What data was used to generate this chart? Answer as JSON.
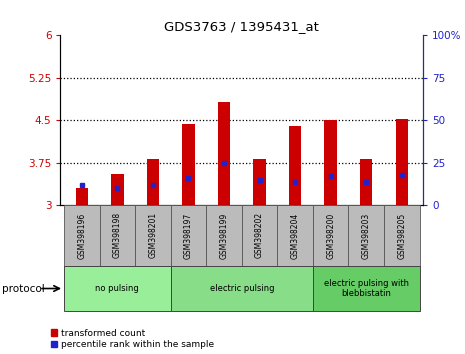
{
  "title": "GDS3763 / 1395431_at",
  "samples": [
    "GSM398196",
    "GSM398198",
    "GSM398201",
    "GSM398197",
    "GSM398199",
    "GSM398202",
    "GSM398204",
    "GSM398200",
    "GSM398203",
    "GSM398205"
  ],
  "red_values": [
    3.3,
    3.55,
    3.82,
    4.43,
    4.82,
    3.82,
    4.4,
    4.5,
    3.82,
    4.52
  ],
  "blue_values": [
    12,
    10,
    12,
    16,
    25,
    15,
    14,
    17,
    14,
    18
  ],
  "ylim_left": [
    3.0,
    6.0
  ],
  "ylim_right": [
    0,
    100
  ],
  "yticks_left": [
    3.0,
    3.75,
    4.5,
    5.25,
    6.0
  ],
  "ytick_labels_left": [
    "3",
    "3.75",
    "4.5",
    "5.25",
    "6"
  ],
  "yticks_right": [
    0,
    25,
    50,
    75,
    100
  ],
  "ytick_labels_right": [
    "0",
    "25",
    "50",
    "75",
    "100%"
  ],
  "groups": [
    {
      "label": "no pulsing",
      "start": 0,
      "end": 3,
      "color": "#99ee99"
    },
    {
      "label": "electric pulsing",
      "start": 3,
      "end": 7,
      "color": "#88dd88"
    },
    {
      "label": "electric pulsing with\nblebbistatin",
      "start": 7,
      "end": 10,
      "color": "#66cc66"
    }
  ],
  "bar_width": 0.35,
  "red_color": "#cc0000",
  "blue_color": "#2222cc",
  "background_color": "#ffffff",
  "tick_bg_color": "#bbbbbb",
  "left_axis_color": "#cc0000",
  "right_axis_color": "#2222cc",
  "legend_red_label": "transformed count",
  "legend_blue_label": "percentile rank within the sample",
  "protocol_label": "protocol"
}
